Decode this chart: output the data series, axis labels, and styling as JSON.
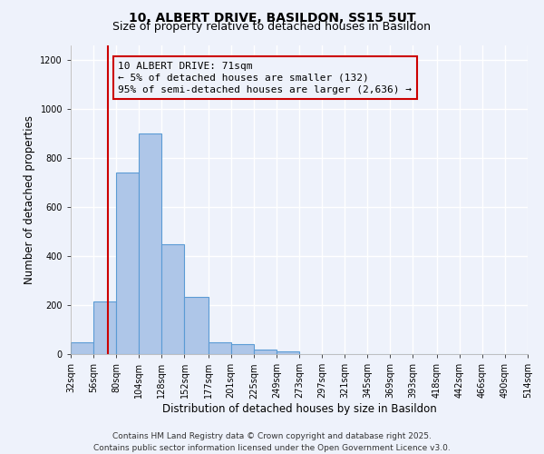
{
  "title": "10, ALBERT DRIVE, BASILDON, SS15 5UT",
  "subtitle": "Size of property relative to detached houses in Basildon",
  "xlabel": "Distribution of detached houses by size in Basildon",
  "ylabel": "Number of detached properties",
  "bar_left_edges": [
    32,
    56,
    80,
    104,
    128,
    152,
    177,
    201,
    225,
    249,
    273,
    297,
    321,
    345,
    369,
    393,
    418,
    442,
    466,
    490
  ],
  "bar_widths": [
    24,
    24,
    24,
    24,
    24,
    25,
    24,
    24,
    24,
    24,
    24,
    24,
    24,
    24,
    24,
    25,
    24,
    24,
    24,
    24
  ],
  "bar_heights": [
    50,
    215,
    740,
    900,
    450,
    235,
    50,
    40,
    20,
    10,
    0,
    0,
    0,
    0,
    0,
    0,
    0,
    0,
    0,
    0
  ],
  "bar_color": "#aec6e8",
  "bar_edge_color": "#5b9bd5",
  "tick_labels": [
    "32sqm",
    "56sqm",
    "80sqm",
    "104sqm",
    "128sqm",
    "152sqm",
    "177sqm",
    "201sqm",
    "225sqm",
    "249sqm",
    "273sqm",
    "297sqm",
    "321sqm",
    "345sqm",
    "369sqm",
    "393sqm",
    "418sqm",
    "442sqm",
    "466sqm",
    "490sqm",
    "514sqm"
  ],
  "vline_x": 71,
  "vline_color": "#cc0000",
  "ylim": [
    0,
    1260
  ],
  "yticks": [
    0,
    200,
    400,
    600,
    800,
    1000,
    1200
  ],
  "xlim": [
    32,
    514
  ],
  "annotation_title": "10 ALBERT DRIVE: 71sqm",
  "annotation_line1": "← 5% of detached houses are smaller (132)",
  "annotation_line2": "95% of semi-detached houses are larger (2,636) →",
  "footer1": "Contains HM Land Registry data © Crown copyright and database right 2025.",
  "footer2": "Contains public sector information licensed under the Open Government Licence v3.0.",
  "background_color": "#eef2fb",
  "grid_color": "#ffffff",
  "title_fontsize": 10,
  "subtitle_fontsize": 9,
  "axis_label_fontsize": 8.5,
  "tick_fontsize": 7,
  "annotation_fontsize": 8,
  "footer_fontsize": 6.5
}
